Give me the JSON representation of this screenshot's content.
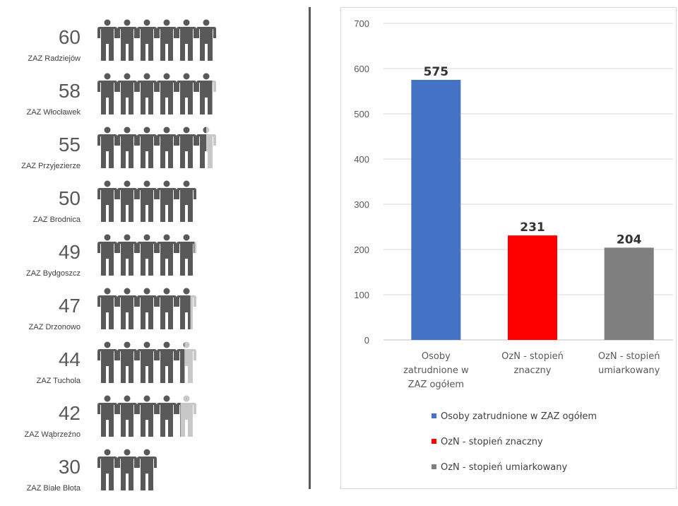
{
  "infographic": {
    "rows": [
      {
        "value": "60",
        "label": "ZAZ Radziejów",
        "count": 60
      },
      {
        "value": "58",
        "label": "ZAZ Włocławek",
        "count": 58
      },
      {
        "value": "55",
        "label": "ZAZ Przyjezierze",
        "count": 55
      },
      {
        "value": "50",
        "label": "ZAZ Brodnica",
        "count": 50
      },
      {
        "value": "49",
        "label": "ZAZ Bydgoszcz",
        "count": 49
      },
      {
        "value": "47",
        "label": "ZAZ Drzonowo",
        "count": 47
      },
      {
        "value": "44",
        "label": "ZAZ Tuchola",
        "count": 44
      },
      {
        "value": "42",
        "label": "ZAZ Wąbrzeźno",
        "count": 42
      },
      {
        "value": "30",
        "label": "ZAZ Białe Błota",
        "count": 30
      }
    ],
    "persons_per_icon": 10,
    "icon": "person-icon",
    "colors": {
      "filled": "#595959",
      "empty": "#c8c8c8"
    }
  },
  "chart_data": {
    "type": "bar",
    "categories": [
      [
        "Osoby",
        "zatrudnione w",
        "ZAZ ogółem"
      ],
      [
        "OzN - stopień",
        "znaczny"
      ],
      [
        "OzN - stopień",
        "umiarkowany"
      ]
    ],
    "values": [
      575,
      231,
      204
    ],
    "data_labels": [
      "575",
      "231",
      "204"
    ],
    "colors": [
      "#4472c4",
      "#ff0000",
      "#7f7f7f"
    ],
    "ylim": [
      0,
      700
    ],
    "yticks": [
      0,
      100,
      200,
      300,
      400,
      500,
      600,
      700
    ],
    "grid": true,
    "legend": {
      "placement": "bottom",
      "entries": [
        {
          "label": "Osoby zatrudnione w ZAZ ogółem",
          "color": "#4472c4"
        },
        {
          "label": "OzN - stopień znaczny",
          "color": "#ff0000"
        },
        {
          "label": "OzN - stopień umiarkowany",
          "color": "#7f7f7f"
        }
      ]
    }
  }
}
